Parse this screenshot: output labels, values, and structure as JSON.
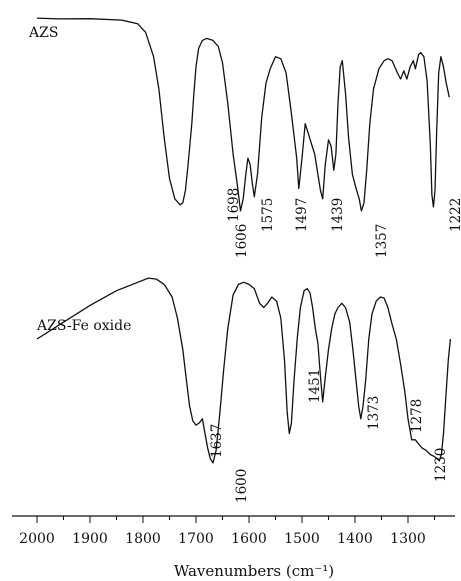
{
  "chart_data": {
    "type": "line",
    "xlabel": "Wavenumbers (cm⁻¹)",
    "xlim": [
      2000,
      1210
    ],
    "x_reversed": true,
    "x_ticks": [
      "2000",
      "1900",
      "1800",
      "1700",
      "1600",
      "1500",
      "1400",
      "1300"
    ],
    "y_axis_visible": false,
    "series": [
      {
        "name": "AZS",
        "points": [
          [
            2000,
            3.0
          ],
          [
            1960,
            3.4
          ],
          [
            1900,
            3.3
          ],
          [
            1840,
            4.0
          ],
          [
            1810,
            5.8
          ],
          [
            1795,
            10.0
          ],
          [
            1780,
            22.0
          ],
          [
            1770,
            38.0
          ],
          [
            1760,
            62.0
          ],
          [
            1750,
            82.0
          ],
          [
            1740,
            92.0
          ],
          [
            1730,
            95.0
          ],
          [
            1725,
            94.0
          ],
          [
            1720,
            88.0
          ],
          [
            1715,
            75.0
          ],
          [
            1712,
            67.0
          ],
          [
            1708,
            55.0
          ],
          [
            1704,
            40.0
          ],
          [
            1700,
            27.0
          ],
          [
            1695,
            18.0
          ],
          [
            1688,
            14.0
          ],
          [
            1680,
            13.0
          ],
          [
            1668,
            14.0
          ],
          [
            1658,
            17.0
          ],
          [
            1650,
            25.0
          ],
          [
            1640,
            45.0
          ],
          [
            1630,
            70.0
          ],
          [
            1622,
            85.0
          ],
          [
            1616,
            98.0
          ],
          [
            1611,
            92.0
          ],
          [
            1606,
            80.0
          ],
          [
            1602,
            72.0
          ],
          [
            1598,
            75.0
          ],
          [
            1594,
            84.0
          ],
          [
            1590,
            91.0
          ],
          [
            1584,
            80.0
          ],
          [
            1576,
            52.0
          ],
          [
            1568,
            35.0
          ],
          [
            1560,
            28.0
          ],
          [
            1550,
            22.0
          ],
          [
            1540,
            23.0
          ],
          [
            1530,
            30.0
          ],
          [
            1520,
            50.0
          ],
          [
            1510,
            72.0
          ],
          [
            1506,
            87.0
          ],
          [
            1500,
            72.0
          ],
          [
            1494,
            55.0
          ],
          [
            1488,
            60.0
          ],
          [
            1482,
            65.0
          ],
          [
            1476,
            70.0
          ],
          [
            1470,
            80.0
          ],
          [
            1465,
            88.0
          ],
          [
            1461,
            92.0
          ],
          [
            1456,
            75.0
          ],
          [
            1450,
            63.0
          ],
          [
            1445,
            66.0
          ],
          [
            1440,
            78.0
          ],
          [
            1436,
            70.0
          ],
          [
            1432,
            45.0
          ],
          [
            1428,
            27.0
          ],
          [
            1424,
            24.0
          ],
          [
            1418,
            40.0
          ],
          [
            1412,
            62.0
          ],
          [
            1405,
            80.0
          ],
          [
            1398,
            87.0
          ],
          [
            1392,
            92.0
          ],
          [
            1388,
            98.0
          ],
          [
            1383,
            94.0
          ],
          [
            1378,
            78.0
          ],
          [
            1372,
            55.0
          ],
          [
            1365,
            38.0
          ],
          [
            1355,
            28.0
          ],
          [
            1345,
            24.0
          ],
          [
            1338,
            23.0
          ],
          [
            1330,
            24.0
          ],
          [
            1320,
            30.0
          ],
          [
            1314,
            33.0
          ],
          [
            1308,
            29.0
          ],
          [
            1302,
            33.0
          ],
          [
            1296,
            27.0
          ],
          [
            1290,
            24.0
          ],
          [
            1286,
            28.0
          ],
          [
            1280,
            21.0
          ],
          [
            1276,
            20.0
          ],
          [
            1270,
            22.0
          ],
          [
            1264,
            34.0
          ],
          [
            1258,
            65.0
          ],
          [
            1255,
            90.0
          ],
          [
            1252,
            96.0
          ],
          [
            1249,
            88.0
          ],
          [
            1246,
            60.0
          ],
          [
            1242,
            30.0
          ],
          [
            1238,
            22.0
          ],
          [
            1233,
            27.0
          ],
          [
            1228,
            35.0
          ],
          [
            1222,
            42.0
          ]
        ]
      },
      {
        "name": "AZS-Fe oxide",
        "points": [
          [
            2000,
            40.0
          ],
          [
            1950,
            32.0
          ],
          [
            1900,
            24.0
          ],
          [
            1850,
            17.0
          ],
          [
            1810,
            13.0
          ],
          [
            1790,
            11.0
          ],
          [
            1775,
            11.5
          ],
          [
            1760,
            14.0
          ],
          [
            1745,
            20.0
          ],
          [
            1735,
            30.0
          ],
          [
            1725,
            45.0
          ],
          [
            1718,
            60.0
          ],
          [
            1712,
            72.0
          ],
          [
            1706,
            79.0
          ],
          [
            1700,
            81.0
          ],
          [
            1694,
            80.0
          ],
          [
            1688,
            78.0
          ],
          [
            1683,
            85.0
          ],
          [
            1678,
            92.0
          ],
          [
            1673,
            97.0
          ],
          [
            1668,
            99.0
          ],
          [
            1662,
            93.0
          ],
          [
            1655,
            75.0
          ],
          [
            1648,
            55.0
          ],
          [
            1640,
            35.0
          ],
          [
            1630,
            19.0
          ],
          [
            1620,
            14.0
          ],
          [
            1610,
            13.0
          ],
          [
            1600,
            14.0
          ],
          [
            1590,
            16.0
          ],
          [
            1580,
            23.0
          ],
          [
            1572,
            25.0
          ],
          [
            1565,
            23.0
          ],
          [
            1557,
            20.0
          ],
          [
            1548,
            22.0
          ],
          [
            1540,
            30.0
          ],
          [
            1533,
            50.0
          ],
          [
            1528,
            75.0
          ],
          [
            1524,
            85.0
          ],
          [
            1520,
            80.0
          ],
          [
            1515,
            60.0
          ],
          [
            1509,
            40.0
          ],
          [
            1503,
            25.0
          ],
          [
            1496,
            17.0
          ],
          [
            1490,
            16.0
          ],
          [
            1485,
            18.0
          ],
          [
            1480,
            25.0
          ],
          [
            1475,
            35.0
          ],
          [
            1470,
            42.0
          ],
          [
            1465,
            58.0
          ],
          [
            1461,
            70.0
          ],
          [
            1456,
            58.0
          ],
          [
            1450,
            45.0
          ],
          [
            1444,
            35.0
          ],
          [
            1438,
            28.0
          ],
          [
            1432,
            25.0
          ],
          [
            1425,
            23.0
          ],
          [
            1418,
            25.0
          ],
          [
            1410,
            32.0
          ],
          [
            1404,
            45.0
          ],
          [
            1398,
            60.0
          ],
          [
            1393,
            72.0
          ],
          [
            1389,
            78.0
          ],
          [
            1385,
            72.0
          ],
          [
            1380,
            60.0
          ],
          [
            1374,
            40.0
          ],
          [
            1368,
            28.0
          ],
          [
            1360,
            22.0
          ],
          [
            1352,
            20.0
          ],
          [
            1345,
            20.5
          ],
          [
            1338,
            25.0
          ],
          [
            1330,
            33.0
          ],
          [
            1322,
            40.0
          ],
          [
            1314,
            52.0
          ],
          [
            1306,
            65.0
          ],
          [
            1300,
            78.0
          ],
          [
            1293,
            88.0
          ],
          [
            1286,
            88.0
          ],
          [
            1280,
            90.0
          ],
          [
            1273,
            92.0
          ],
          [
            1266,
            93.0
          ],
          [
            1258,
            95.0
          ],
          [
            1250,
            96.0
          ],
          [
            1245,
            97.0
          ],
          [
            1241,
            98.0
          ],
          [
            1237,
            95.0
          ],
          [
            1233,
            85.0
          ],
          [
            1228,
            65.0
          ],
          [
            1224,
            50.0
          ],
          [
            1220,
            40.0
          ]
        ]
      }
    ],
    "peak_labels": [
      {
        "series": "AZS",
        "labels": [
          "1698",
          "1606",
          "1575",
          "1497",
          "1439",
          "1357",
          "1222"
        ]
      },
      {
        "series": "AZS-Fe oxide",
        "labels": [
          "1637",
          "1600",
          "1451",
          "1373",
          "1278",
          "1230"
        ]
      }
    ]
  }
}
